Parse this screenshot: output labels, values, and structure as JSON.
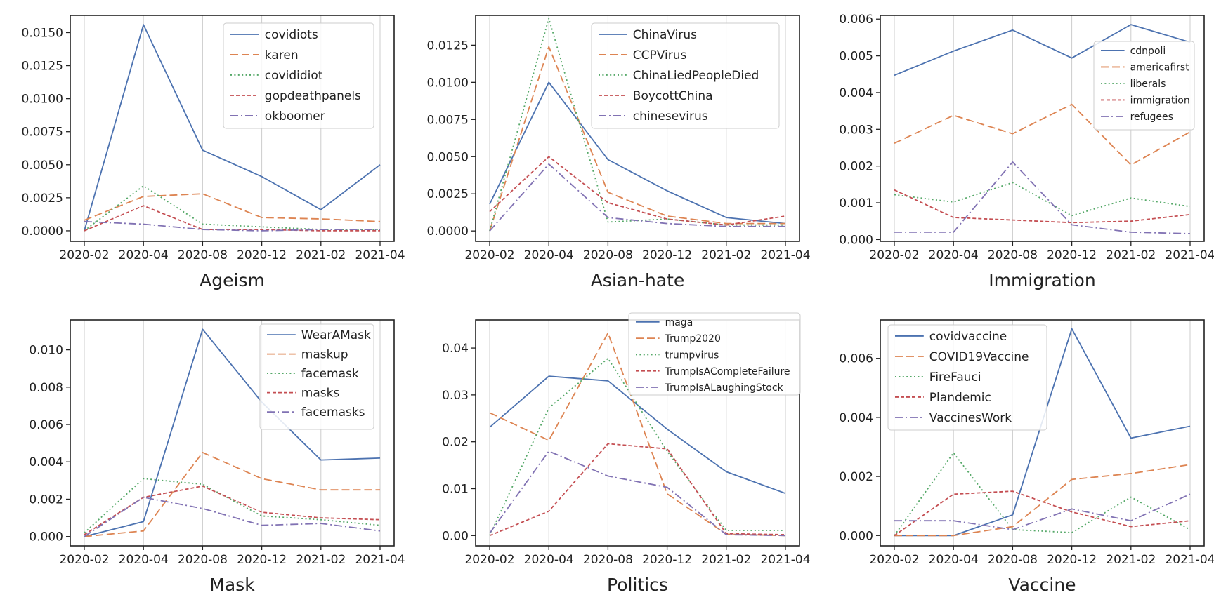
{
  "figure": {
    "x_ticks": [
      "2020-02",
      "2020-04",
      "2020-08",
      "2020-12",
      "2021-02",
      "2021-04"
    ],
    "colors": [
      "#4c72b0",
      "#dd8452",
      "#55a868",
      "#c44e52",
      "#8172b3"
    ],
    "dash_styles": [
      "solid",
      "dashed",
      "dotted",
      "dashed-short",
      "dashdot"
    ]
  },
  "chart_data": [
    {
      "type": "line",
      "title": "Ageism",
      "ylim": [
        -0.0008,
        0.0163
      ],
      "yticks": [
        "0.0000",
        "0.0025",
        "0.0050",
        "0.0075",
        "0.0100",
        "0.0125",
        "0.0150"
      ],
      "legend": "top-right",
      "x": [
        "2020-02",
        "2020-04",
        "2020-08",
        "2020-12",
        "2021-02",
        "2021-04"
      ],
      "series": [
        {
          "name": "covidiots",
          "values": [
            0.0,
            0.0156,
            0.0061,
            0.0041,
            0.0016,
            0.005
          ]
        },
        {
          "name": "karen",
          "values": [
            0.0008,
            0.0026,
            0.0028,
            0.001,
            0.0009,
            0.0007
          ]
        },
        {
          "name": "covididiot",
          "values": [
            0.0,
            0.0034,
            0.0005,
            0.0003,
            0.0001,
            0.0001
          ]
        },
        {
          "name": "gopdeathpanels",
          "values": [
            0.0,
            0.0019,
            0.0001,
            0.0001,
            0.0,
            0.0
          ]
        },
        {
          "name": "okboomer",
          "values": [
            0.0007,
            0.0005,
            0.0001,
            0.0,
            0.0001,
            0.0001
          ]
        }
      ]
    },
    {
      "type": "line",
      "title": "Asian-hate",
      "ylim": [
        -0.0007,
        0.0145
      ],
      "yticks": [
        "0.0000",
        "0.0025",
        "0.0050",
        "0.0075",
        "0.0100",
        "0.0125"
      ],
      "legend": "top-right",
      "x": [
        "2020-02",
        "2020-04",
        "2020-08",
        "2020-12",
        "2021-02",
        "2021-04"
      ],
      "series": [
        {
          "name": "ChinaVirus",
          "values": [
            0.0018,
            0.01,
            0.0048,
            0.0027,
            0.0009,
            0.0005
          ]
        },
        {
          "name": "CCPVirus",
          "values": [
            0.0,
            0.0124,
            0.0026,
            0.001,
            0.0005,
            0.0005
          ]
        },
        {
          "name": "ChinaLiedPeopleDied",
          "values": [
            0.0,
            0.0143,
            0.0006,
            0.0008,
            0.0004,
            0.0004
          ]
        },
        {
          "name": "BoycottChina",
          "values": [
            0.0013,
            0.005,
            0.0019,
            0.0008,
            0.0004,
            0.001
          ]
        },
        {
          "name": "chinesevirus",
          "values": [
            0.0,
            0.0045,
            0.0009,
            0.0005,
            0.0003,
            0.0003
          ]
        }
      ]
    },
    {
      "type": "line",
      "title": "Immigration",
      "ylim": [
        -5e-05,
        0.0061
      ],
      "yticks": [
        "0.000",
        "0.001",
        "0.002",
        "0.003",
        "0.004",
        "0.005",
        "0.006"
      ],
      "legend": "top-right",
      "x": [
        "2020-02",
        "2020-04",
        "2020-08",
        "2020-12",
        "2021-02",
        "2021-04"
      ],
      "series": [
        {
          "name": "cdnpoli",
          "values": [
            0.00447,
            0.00513,
            0.0057,
            0.00494,
            0.00585,
            0.00537
          ]
        },
        {
          "name": "americafirst",
          "values": [
            0.00262,
            0.00338,
            0.00288,
            0.00368,
            0.00203,
            0.00293
          ]
        },
        {
          "name": "liberals",
          "values": [
            0.00122,
            0.00102,
            0.00155,
            0.00065,
            0.00113,
            0.0009
          ]
        },
        {
          "name": "immigration",
          "values": [
            0.00135,
            0.0006,
            0.00053,
            0.00046,
            0.0005,
            0.00068
          ]
        },
        {
          "name": "refugees",
          "values": [
            0.0002,
            0.0002,
            0.00211,
            0.0004,
            0.0002,
            0.00016
          ]
        }
      ]
    },
    {
      "type": "line",
      "title": "Mask",
      "ylim": [
        -0.0005,
        0.0116
      ],
      "yticks": [
        "0.000",
        "0.002",
        "0.004",
        "0.006",
        "0.008",
        "0.010"
      ],
      "legend": "top-right",
      "x": [
        "2020-02",
        "2020-04",
        "2020-08",
        "2020-12",
        "2021-02",
        "2021-04"
      ],
      "series": [
        {
          "name": "WearAMask",
          "values": [
            0.0,
            0.0008,
            0.0111,
            0.0072,
            0.0041,
            0.0042
          ]
        },
        {
          "name": "maskup",
          "values": [
            0.0,
            0.0003,
            0.0045,
            0.0031,
            0.0025,
            0.0025
          ]
        },
        {
          "name": "facemask",
          "values": [
            0.0002,
            0.0031,
            0.0028,
            0.0011,
            0.0009,
            0.0006
          ]
        },
        {
          "name": "masks",
          "values": [
            0.0001,
            0.0021,
            0.0027,
            0.0013,
            0.001,
            0.0009
          ]
        },
        {
          "name": "facemasks",
          "values": [
            0.0,
            0.0021,
            0.0015,
            0.0006,
            0.0007,
            0.0003
          ]
        }
      ]
    },
    {
      "type": "line",
      "title": "Politics",
      "ylim": [
        -0.0022,
        0.046
      ],
      "yticks": [
        "0.00",
        "0.01",
        "0.02",
        "0.03",
        "0.04"
      ],
      "legend": "top-right",
      "x": [
        "2020-02",
        "2020-04",
        "2020-08",
        "2020-12",
        "2021-02",
        "2021-04"
      ],
      "series": [
        {
          "name": "maga",
          "values": [
            0.0231,
            0.034,
            0.033,
            0.0227,
            0.0136,
            0.009
          ]
        },
        {
          "name": "Trump2020",
          "values": [
            0.0262,
            0.0203,
            0.0432,
            0.0089,
            0.0003,
            0.0
          ]
        },
        {
          "name": "trumpvirus",
          "values": [
            0.0,
            0.0272,
            0.0378,
            0.018,
            0.0011,
            0.0011
          ]
        },
        {
          "name": "TrumpIsACompleteFailure",
          "values": [
            0.0,
            0.0052,
            0.0196,
            0.0185,
            0.0004,
            0.0002
          ]
        },
        {
          "name": "TrumpIsALaughingStock",
          "values": [
            0.0005,
            0.018,
            0.0127,
            0.0103,
            0.0002,
            0.0
          ]
        }
      ]
    },
    {
      "type": "line",
      "title": "Vaccine",
      "ylim": [
        -0.00035,
        0.0073
      ],
      "yticks": [
        "0.000",
        "0.002",
        "0.004",
        "0.006"
      ],
      "legend": "top-left",
      "x": [
        "2020-02",
        "2020-04",
        "2020-08",
        "2020-12",
        "2021-02",
        "2021-04"
      ],
      "series": [
        {
          "name": "covidvaccine",
          "values": [
            0.0,
            0.0,
            0.0007,
            0.007,
            0.0033,
            0.0037
          ]
        },
        {
          "name": "COVID19Vaccine",
          "values": [
            0.0,
            0.0,
            0.0003,
            0.0019,
            0.0021,
            0.0024
          ]
        },
        {
          "name": "FireFauci",
          "values": [
            0.0,
            0.0028,
            0.0002,
            0.0001,
            0.0013,
            0.0002
          ]
        },
        {
          "name": "Plandemic",
          "values": [
            0.0,
            0.0014,
            0.0015,
            0.0008,
            0.0003,
            0.0005
          ]
        },
        {
          "name": "VaccinesWork",
          "values": [
            0.0005,
            0.0005,
            0.0002,
            0.0009,
            0.0005,
            0.0014
          ]
        }
      ]
    }
  ]
}
